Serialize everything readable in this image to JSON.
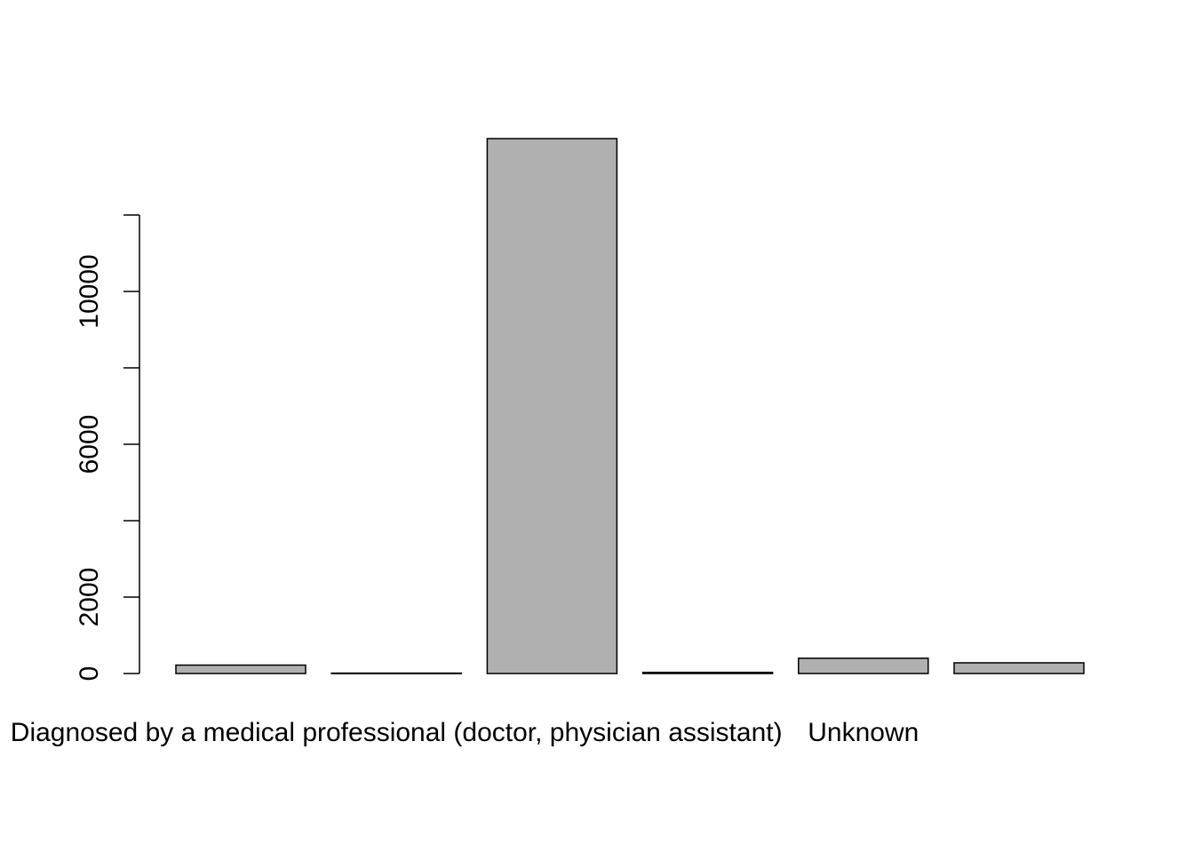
{
  "chart_data": {
    "type": "bar",
    "title": "",
    "xlabel": "",
    "ylabel": "",
    "categories": [
      "",
      "Diagnosed by a medical professional (doctor, physician assistant)",
      "",
      "",
      "Unknown",
      ""
    ],
    "values": [
      220,
      10,
      14000,
      30,
      400,
      280
    ],
    "ylim": [
      0,
      14000
    ],
    "y_ticks": [
      0,
      2000,
      4000,
      6000,
      8000,
      10000,
      12000
    ],
    "y_tick_labels": [
      "0",
      "2000",
      "",
      "6000",
      "",
      "10000",
      ""
    ],
    "bar_color": "#b0b0b0",
    "grid": false,
    "legend": "none"
  }
}
